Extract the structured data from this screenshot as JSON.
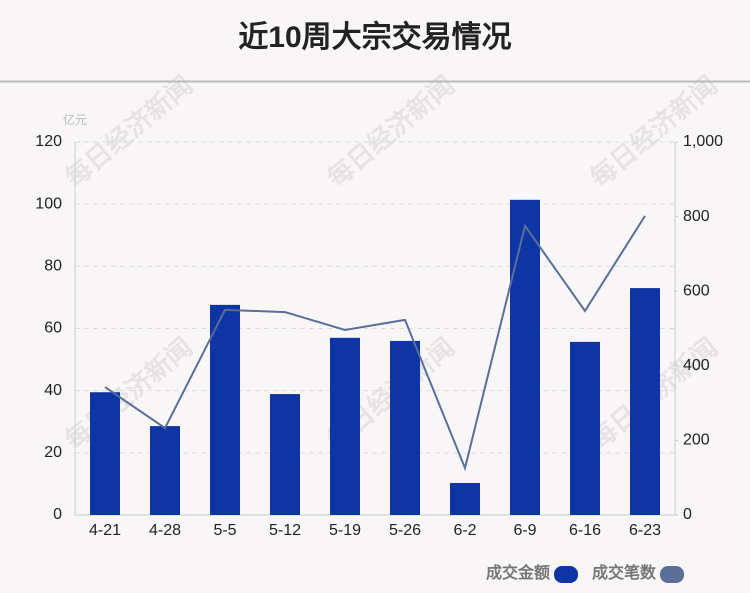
{
  "chart_data": {
    "type": "bar",
    "title": "近10周大宗交易情况",
    "y_unit": "亿元",
    "watermark": "每日经济新闻",
    "categories": [
      "4-21",
      "4-28",
      "5-5",
      "5-12",
      "5-19",
      "5-26",
      "6-2",
      "6-9",
      "6-16",
      "6-23"
    ],
    "series": [
      {
        "name": "成交金额",
        "type": "bar",
        "color": "#0d35a3",
        "values": [
          39.5,
          28.6,
          67.6,
          38.9,
          57,
          56,
          10.3,
          101.4,
          55.7,
          73
        ]
      },
      {
        "name": "成交笔数",
        "type": "line",
        "axis": "y2",
        "color": "#5a6e9a",
        "values": [
          343,
          233,
          550,
          544,
          496,
          523,
          126,
          775,
          547,
          802
        ]
      }
    ],
    "ylim": [
      0,
      120
    ],
    "yticks": [
      0,
      20,
      40,
      60,
      80,
      100,
      120
    ],
    "y2lim": [
      0,
      1000
    ],
    "y2ticks": [
      0,
      200,
      400,
      600,
      800,
      {
        "value": 1000,
        "label": "1,000"
      }
    ],
    "grid": true,
    "legend": "bottom-right"
  }
}
